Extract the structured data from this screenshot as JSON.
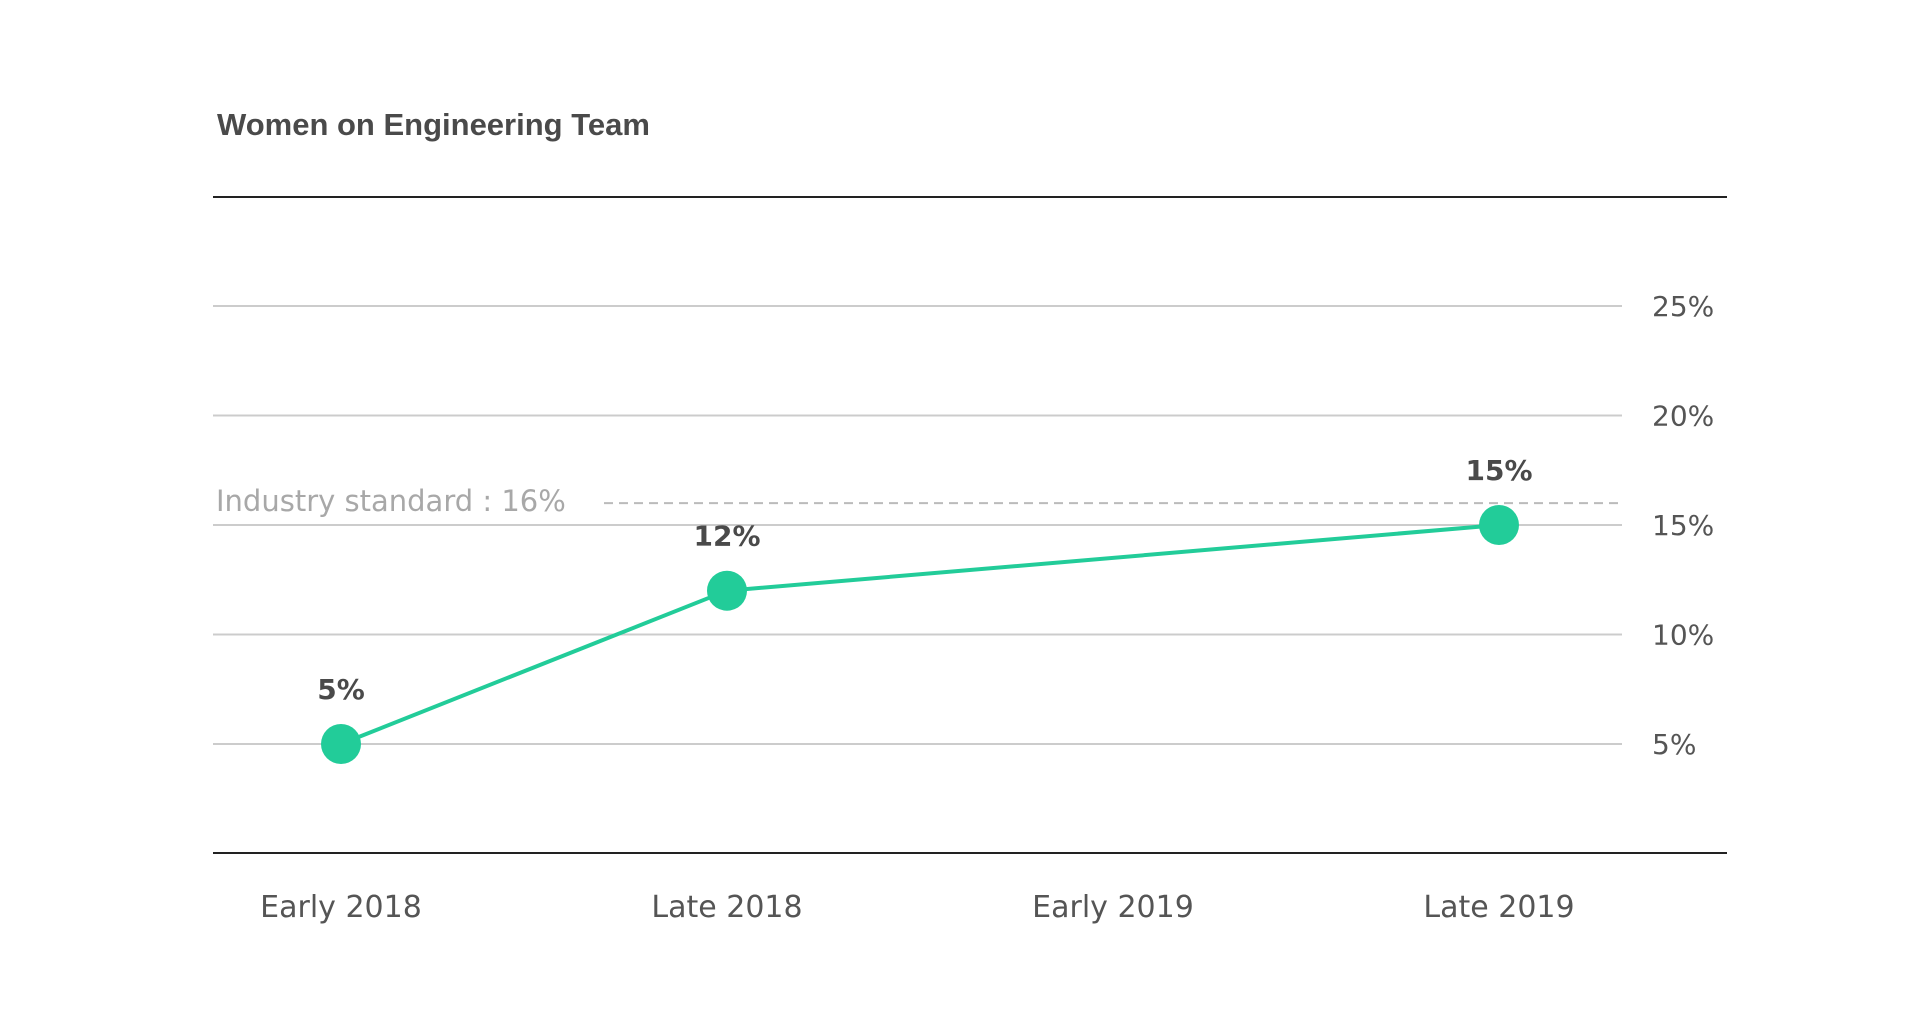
{
  "chart_data": {
    "type": "line",
    "title": "Women on Engineering Team",
    "categories": [
      "Early 2018",
      "Late 2018",
      "Early 2019",
      "Late 2019"
    ],
    "series": [
      {
        "points": [
          {
            "x": "Early 2018",
            "y": 5,
            "label": "5%"
          },
          {
            "x": "Late 2018",
            "y": 12,
            "label": "12%"
          },
          {
            "x": "Late 2019",
            "y": 15,
            "label": "15%"
          }
        ],
        "color": "#22cc99"
      }
    ],
    "y_ticks": [
      {
        "value": 25,
        "label": "25%"
      },
      {
        "value": 20,
        "label": "20%"
      },
      {
        "value": 15,
        "label": "15%"
      },
      {
        "value": 10,
        "label": "10%"
      },
      {
        "value": 5,
        "label": "5%"
      }
    ],
    "reference_line": {
      "value": 16,
      "label": "Industry standard : 16%"
    },
    "ylim": [
      0,
      30
    ],
    "y_axis_position": "right",
    "grid": true,
    "colors": {
      "line": "#22cc99",
      "grid": "#cccccc",
      "reference": "#bbbbbb",
      "frame": "#222222"
    }
  }
}
